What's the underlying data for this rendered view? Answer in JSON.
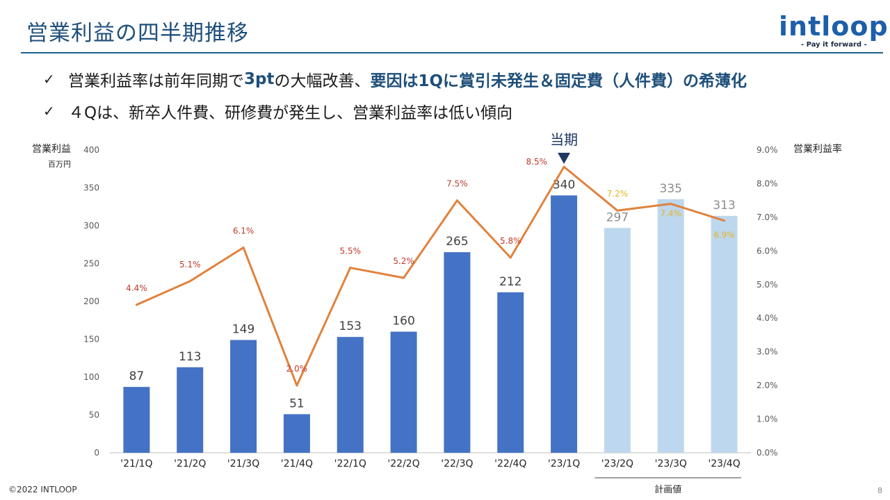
{
  "page": {
    "title": "営業利益の四半期推移",
    "logo_text": "intloop",
    "logo_tagline": "- Pay it forward -",
    "footer": "©2022 INTLOOP",
    "page_number": "8"
  },
  "bullets": [
    {
      "check": "✓",
      "parts": [
        {
          "text": "営業利益率は前年同期で",
          "highlight": false
        },
        {
          "text": "3pt",
          "highlight": true
        },
        {
          "text": "の大幅改善、",
          "highlight": false
        },
        {
          "text": "要因は1Qに賞引未発生＆固定費（人件費）の希薄化",
          "highlight": true
        }
      ]
    },
    {
      "check": "✓",
      "parts": [
        {
          "text": "４Qは、新卒人件費、研修費が発生し、営業利益率は低い傾向",
          "highlight": false
        }
      ]
    }
  ],
  "colors": {
    "actual_bar": "#4472c4",
    "plan_bar": "#bdd7ee",
    "line": "#e0823d",
    "label_actual_rate": "#c0392b",
    "label_plan_rate": "#e6b422",
    "marker": "#1f3864"
  },
  "chart_data": {
    "type": "bar+line",
    "categories": [
      "'21/1Q",
      "'21/2Q",
      "'21/3Q",
      "'21/4Q",
      "'22/1Q",
      "'22/2Q",
      "'22/3Q",
      "'22/4Q",
      "'23/1Q",
      "'23/2Q",
      "'23/3Q",
      "'23/4Q"
    ],
    "series": [
      {
        "name": "営業利益",
        "type": "bar",
        "axis": "left",
        "values": [
          87,
          113,
          149,
          51,
          153,
          160,
          265,
          212,
          340,
          297,
          335,
          313
        ]
      },
      {
        "name": "営業利益率",
        "type": "line",
        "axis": "right",
        "values": [
          4.4,
          5.1,
          6.1,
          2.0,
          5.5,
          5.2,
          7.5,
          5.8,
          8.5,
          7.2,
          7.4,
          6.9
        ],
        "labels": [
          "4.4%",
          "5.1%",
          "6.1%",
          "2.0%",
          "5.5%",
          "5.2%",
          "7.5%",
          "5.8%",
          "8.5%",
          "7.2%",
          "7.4%",
          "6.9%"
        ]
      }
    ],
    "plan_from_index": 9,
    "current_index": 8,
    "current_label": "当期",
    "plan_label": "計画値",
    "left_axis": {
      "label": "営業利益",
      "unit": "百万円",
      "ylim": [
        0,
        400
      ],
      "ticks": [
        "0",
        "50",
        "100",
        "150",
        "200",
        "250",
        "300",
        "350",
        "400"
      ]
    },
    "right_axis": {
      "label": "営業利益率",
      "ylim": [
        0,
        9
      ],
      "ticks": [
        "0.0%",
        "1.0%",
        "2.0%",
        "3.0%",
        "4.0%",
        "5.0%",
        "6.0%",
        "7.0%",
        "8.0%",
        "9.0%"
      ]
    }
  }
}
